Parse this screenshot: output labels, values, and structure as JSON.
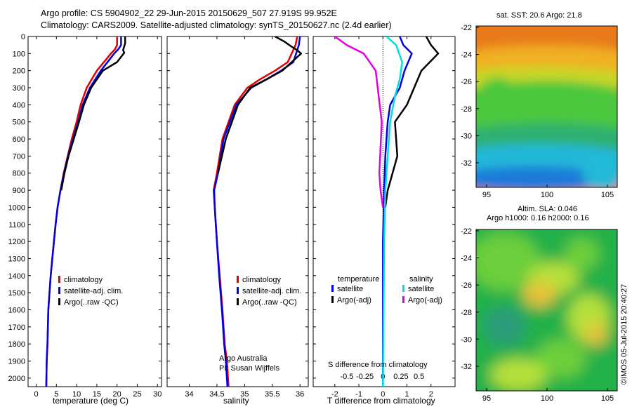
{
  "header": {
    "line1": "Argo profile: CS 5904902_22 29-Jun-2015 20150629_507 27.919S 99.952E",
    "line2": "Climatology: CARS2009. Satellite-adjusted climatology: synTS_20150627.nc (2.4d earlier)"
  },
  "colors": {
    "clim": "#e00000",
    "sat": "#0000e0",
    "argo": "#000000",
    "cyan": "#00e0e0",
    "magenta": "#e000e0"
  },
  "chart_data": [
    {
      "type": "line",
      "id": "temperature",
      "xlabel": "temperature (deg C)",
      "xlim": [
        -2,
        31
      ],
      "ylim": [
        0,
        2050
      ],
      "xticks": [
        0,
        5,
        10,
        15,
        20,
        25,
        30
      ],
      "yticks": [
        0,
        100,
        200,
        300,
        400,
        500,
        600,
        700,
        800,
        900,
        1000,
        1100,
        1200,
        1300,
        1400,
        1500,
        1600,
        1700,
        1800,
        1900,
        2000
      ],
      "legend": [
        "climatology",
        "satellite-adj. clim.",
        "Argo(..raw -QC)"
      ],
      "series": [
        {
          "name": "climatology",
          "key": "clim",
          "x": [
            20.0,
            20.0,
            19.5,
            18.5,
            15.0,
            12.5,
            11.0,
            10.0,
            8.8,
            7.8,
            6.8,
            6.0,
            5.3,
            4.8,
            4.4,
            4.0,
            3.6,
            3.3,
            3.0,
            2.8,
            2.6,
            2.5
          ],
          "y": [
            0,
            50,
            75,
            100,
            200,
            300,
            400,
            500,
            600,
            700,
            800,
            900,
            1000,
            1100,
            1200,
            1300,
            1400,
            1500,
            1600,
            1800,
            1900,
            2050
          ]
        },
        {
          "name": "satellite-adj. clim.",
          "key": "sat",
          "x": [
            21.0,
            21.0,
            20.3,
            19.3,
            16.0,
            13.3,
            11.5,
            10.4,
            9.1,
            7.9,
            6.9,
            6.0,
            5.3,
            4.8,
            4.4,
            4.0,
            3.6,
            3.3,
            3.0,
            2.8,
            2.6,
            2.5
          ],
          "y": [
            0,
            50,
            75,
            100,
            200,
            300,
            400,
            500,
            600,
            700,
            800,
            900,
            1000,
            1100,
            1200,
            1300,
            1400,
            1500,
            1600,
            1800,
            1900,
            2050
          ]
        },
        {
          "name": "Argo(..raw -QC)",
          "key": "argo",
          "x": [
            22.0,
            22.0,
            21.5,
            21.8,
            20.0,
            16.5,
            13.6,
            11.8,
            10.6,
            9.3,
            8.0,
            7.0,
            6.2
          ],
          "y": [
            0,
            40,
            80,
            95,
            150,
            200,
            300,
            400,
            500,
            600,
            700,
            800,
            900
          ]
        }
      ]
    },
    {
      "type": "line",
      "id": "salinity",
      "xlabel": "salinity",
      "xlim": [
        33.6,
        36.15
      ],
      "ylim": [
        0,
        2050
      ],
      "xticks": [
        34,
        34.5,
        35,
        35.5,
        36
      ],
      "legend": [
        "climatology",
        "satellite-adj. clim.",
        "Argo(..raw -QC)"
      ],
      "series": [
        {
          "name": "climatology",
          "key": "clim",
          "x": [
            35.95,
            35.92,
            35.78,
            35.55,
            35.28,
            35.05,
            34.82,
            34.6,
            34.5,
            34.44,
            34.46,
            34.5,
            34.55,
            34.6,
            34.64,
            34.68,
            34.7,
            34.71
          ],
          "y": [
            0,
            50,
            150,
            200,
            250,
            300,
            400,
            600,
            800,
            900,
            1000,
            1200,
            1400,
            1600,
            1800,
            1900,
            2000,
            2050
          ]
        },
        {
          "name": "satellite-adj. clim.",
          "key": "sat",
          "x": [
            36.0,
            35.98,
            35.88,
            35.66,
            35.4,
            35.12,
            34.85,
            34.62,
            34.52,
            34.45,
            34.46,
            34.5,
            34.54,
            34.59,
            34.63,
            34.66,
            34.68,
            34.69
          ],
          "y": [
            0,
            50,
            150,
            200,
            250,
            300,
            400,
            600,
            800,
            900,
            1000,
            1200,
            1400,
            1600,
            1800,
            1900,
            2000,
            2050
          ]
        },
        {
          "name": "Argo(..raw -QC)",
          "key": "argo",
          "x": [
            35.55,
            35.72,
            35.85,
            35.95,
            36.02,
            35.85,
            35.68,
            35.4,
            35.1,
            34.88,
            34.66,
            34.52
          ],
          "y": [
            0,
            30,
            60,
            80,
            100,
            150,
            200,
            250,
            300,
            400,
            600,
            800
          ]
        }
      ],
      "annotations": [
        "Argo Australia",
        "PI: Susan Wijffels"
      ]
    },
    {
      "type": "line",
      "id": "differences",
      "xlabel": "T difference from climatology",
      "top_xlabel": "S difference from climatology",
      "xlim": [
        -2.9,
        3.0
      ],
      "ylim": [
        0,
        2050
      ],
      "xticks": [
        -2,
        -1,
        0,
        1,
        2
      ],
      "top_xticks": [
        "-0.5",
        "-0.25",
        "0",
        "0.25",
        "0.5"
      ],
      "legend": {
        "temperature": [
          "satellite",
          "Argo(-adj)"
        ],
        "salinity": [
          "satellite",
          "Argo(-adj)"
        ]
      },
      "series": [
        {
          "name": "satellite",
          "group": "temperature",
          "key": "sat",
          "x": [
            0.7,
            0.85,
            1.2,
            0.9,
            0.7,
            0.3,
            0.2,
            0.1,
            0.05,
            0.0,
            0.0
          ],
          "y": [
            0,
            50,
            100,
            200,
            300,
            400,
            500,
            700,
            900,
            1200,
            2050
          ]
        },
        {
          "name": "Argo(-adj)",
          "group": "temperature",
          "key": "argo",
          "x": [
            1.8,
            2.0,
            2.3,
            1.6,
            1.3,
            1.0,
            0.5,
            0.6,
            0.3,
            0.2,
            0.1
          ],
          "y": [
            0,
            50,
            100,
            200,
            300,
            400,
            500,
            700,
            850,
            900,
            1000
          ]
        },
        {
          "name": "satellite",
          "group": "salinity",
          "key": "cyan",
          "x": [
            0.15,
            0.55,
            0.8,
            0.7,
            0.5,
            0.3,
            0.2,
            0.1,
            0.05,
            0.0
          ],
          "y": [
            0,
            50,
            150,
            250,
            350,
            500,
            700,
            900,
            1200,
            2050
          ]
        },
        {
          "name": "Argo(-adj)",
          "group": "salinity",
          "key": "magenta",
          "x": [
            -2.0,
            -1.5,
            -0.8,
            -0.3,
            -0.05,
            -0.15,
            -0.1,
            0.0
          ],
          "y": [
            0,
            50,
            100,
            200,
            500,
            800,
            900,
            1000
          ]
        }
      ]
    }
  ],
  "maps": {
    "sst": {
      "title": "sat. SST: 20.6  Argo: 21.8",
      "yticks": [
        "-22",
        "-24",
        "-26",
        "-28",
        "-30",
        "-32"
      ],
      "xticks": [
        "95",
        "100",
        "105"
      ],
      "colors": [
        "#e87a1e",
        "#f0b023",
        "#c8d628",
        "#4cc83c",
        "#2fb070",
        "#22b8d8",
        "#1c7ad8"
      ]
    },
    "sla": {
      "title_line1": "Altim. SLA: 0.046",
      "title_line2": "Argo h1000: 0.16 h2000: 0.16",
      "yticks": [
        "-22",
        "-24",
        "-26",
        "-28",
        "-30",
        "-32"
      ],
      "xticks": [
        "95",
        "100",
        "105"
      ],
      "colors": [
        "#22b04a",
        "#6ccf3a",
        "#b6e03a",
        "#e8c23a",
        "#2a9c7a"
      ]
    }
  },
  "footer": {
    "stamp": "©IMOS 05-Jul-2015 20:40:27"
  }
}
